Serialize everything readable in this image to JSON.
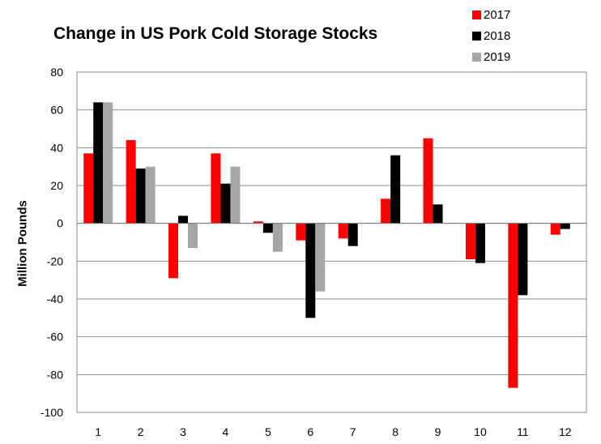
{
  "chart_data": {
    "type": "bar",
    "title": "Change in US Pork Cold Storage Stocks",
    "xlabel": "",
    "ylabel": "Million Pounds",
    "ylim": [
      -100,
      80
    ],
    "yticks": [
      80,
      60,
      40,
      20,
      0,
      -20,
      -40,
      -60,
      -80,
      -100
    ],
    "categories": [
      "1",
      "2",
      "3",
      "4",
      "5",
      "6",
      "7",
      "8",
      "9",
      "10",
      "11",
      "12"
    ],
    "grid": true,
    "legend_position": "top-right",
    "series": [
      {
        "name": "2017",
        "color": "#ff0000",
        "values": [
          37,
          44,
          -29,
          37,
          1,
          -9,
          -8,
          13,
          45,
          -19,
          -87,
          -6
        ]
      },
      {
        "name": "2018",
        "color": "#000000",
        "values": [
          64,
          29,
          4,
          21,
          -5,
          -50,
          -12,
          36,
          10,
          -21,
          -38,
          -3
        ]
      },
      {
        "name": "2019",
        "color": "#a6a6a6",
        "values": [
          64,
          30,
          -13,
          30,
          -15,
          -36,
          null,
          null,
          null,
          null,
          null,
          null
        ]
      }
    ]
  }
}
